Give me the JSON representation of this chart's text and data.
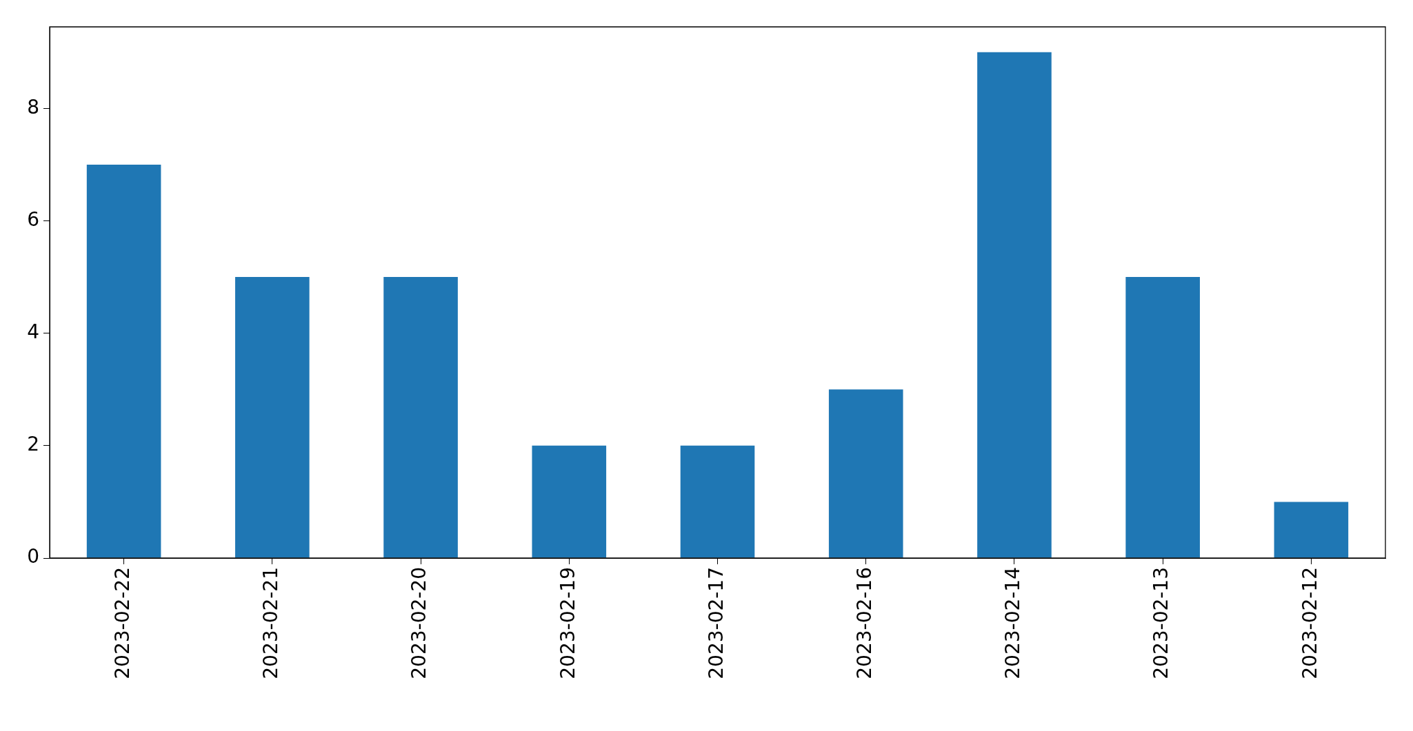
{
  "chart_data": {
    "type": "bar",
    "categories": [
      "2023-02-22",
      "2023-02-21",
      "2023-02-20",
      "2023-02-19",
      "2023-02-17",
      "2023-02-16",
      "2023-02-14",
      "2023-02-13",
      "2023-02-12"
    ],
    "values": [
      7,
      5,
      5,
      2,
      2,
      3,
      9,
      5,
      1
    ],
    "color": "#1f77b4",
    "ylim": [
      0,
      9.45
    ],
    "yticks": [
      0,
      2,
      4,
      6,
      8
    ]
  }
}
